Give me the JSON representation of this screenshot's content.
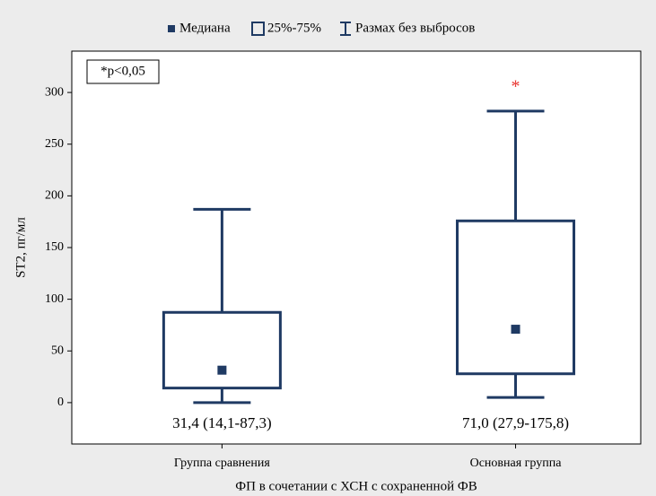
{
  "chart_data": {
    "type": "box",
    "legend": [
      "Медиана",
      "25%-75%",
      "Размах без выбросов"
    ],
    "ylabel": "ST2, пг/мл",
    "xlabel": "ФП в сочетании с ХСН с сохраненной ФВ",
    "note": "*p<0,05",
    "categories": [
      "Группа сравнения",
      "Основная группа"
    ],
    "boxes": [
      {
        "median": 31.4,
        "q1": 14.1,
        "q3": 87.3,
        "min": 0,
        "max": 187,
        "label": "31,4 (14,1-87,3)"
      },
      {
        "median": 71.0,
        "q1": 27.9,
        "q3": 175.8,
        "min": 5,
        "max": 282,
        "label": "71,0 (27,9-175,8)",
        "marker": "*"
      }
    ],
    "color": "#1f3a63",
    "marker_color": "#e8332e",
    "ylim": [
      -40,
      340
    ],
    "yticks": [
      0,
      50,
      100,
      150,
      200,
      250,
      300
    ]
  }
}
